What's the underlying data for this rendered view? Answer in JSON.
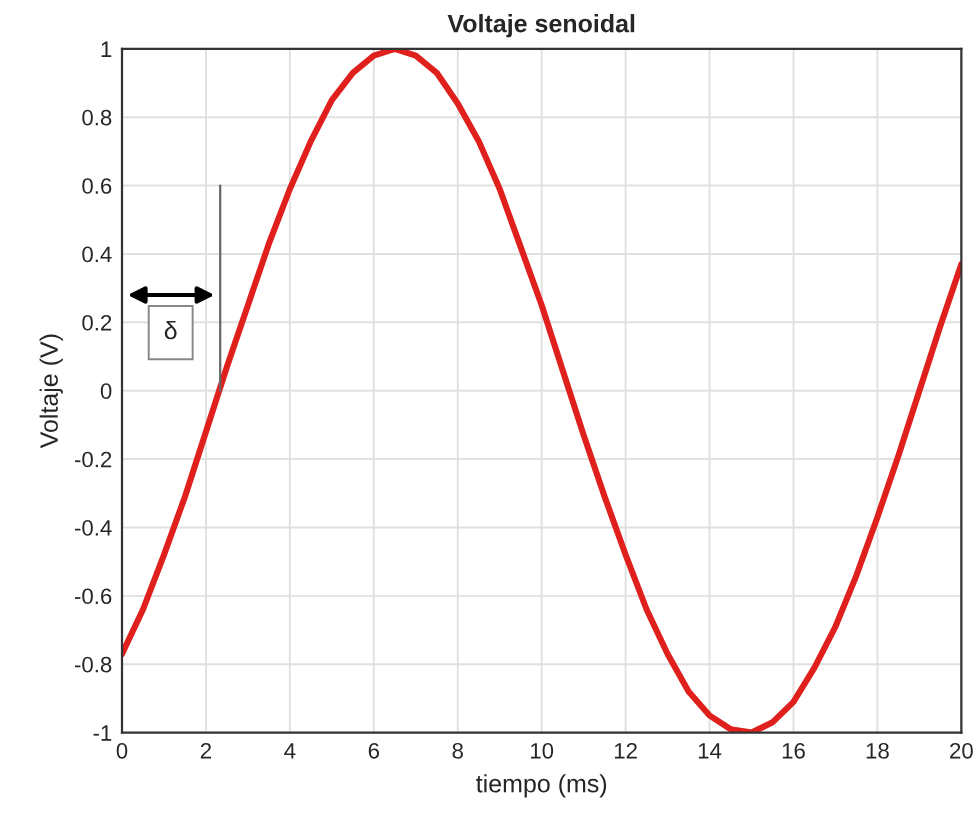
{
  "chart_data": {
    "type": "line",
    "title": "Voltaje senoidal",
    "xlabel": "tiempo (ms)",
    "ylabel": "Voltaje (V)",
    "x": [
      0,
      0.5,
      1,
      1.5,
      2,
      2.5,
      3,
      3.5,
      4,
      4.5,
      5,
      5.5,
      6,
      6.5,
      7,
      7.5,
      8,
      8.5,
      9,
      9.5,
      10,
      10.5,
      11,
      11.5,
      12,
      12.5,
      13,
      13.5,
      14,
      14.5,
      15,
      15.5,
      16,
      16.5,
      17,
      17.5,
      18,
      18.5,
      19,
      19.5,
      20
    ],
    "series": [
      {
        "color": "#e0201c",
        "values": [
          -0.77,
          -0.64,
          -0.48,
          -0.31,
          -0.12,
          0.07,
          0.25,
          0.43,
          0.59,
          0.73,
          0.85,
          0.93,
          0.98,
          1.0,
          0.98,
          0.93,
          0.84,
          0.73,
          0.59,
          0.42,
          0.25,
          0.06,
          -0.13,
          -0.31,
          -0.48,
          -0.64,
          -0.77,
          -0.88,
          -0.95,
          -0.99,
          -1.0,
          -0.97,
          -0.91,
          -0.81,
          -0.69,
          -0.54,
          -0.37,
          -0.19,
          0.0,
          0.19,
          0.37
        ]
      }
    ],
    "annotations": [
      "δ"
    ],
    "xlim": [
      0,
      20
    ],
    "ylim": [
      -1,
      1
    ],
    "xticks": [
      0,
      2,
      4,
      6,
      8,
      10,
      12,
      14,
      16,
      18,
      20
    ],
    "yticks": [
      -1,
      -0.8,
      -0.6,
      -0.4,
      -0.2,
      0,
      0.2,
      0.4,
      0.6,
      0.8,
      1
    ],
    "grid": true,
    "line_style": "solid",
    "marker": "none"
  }
}
